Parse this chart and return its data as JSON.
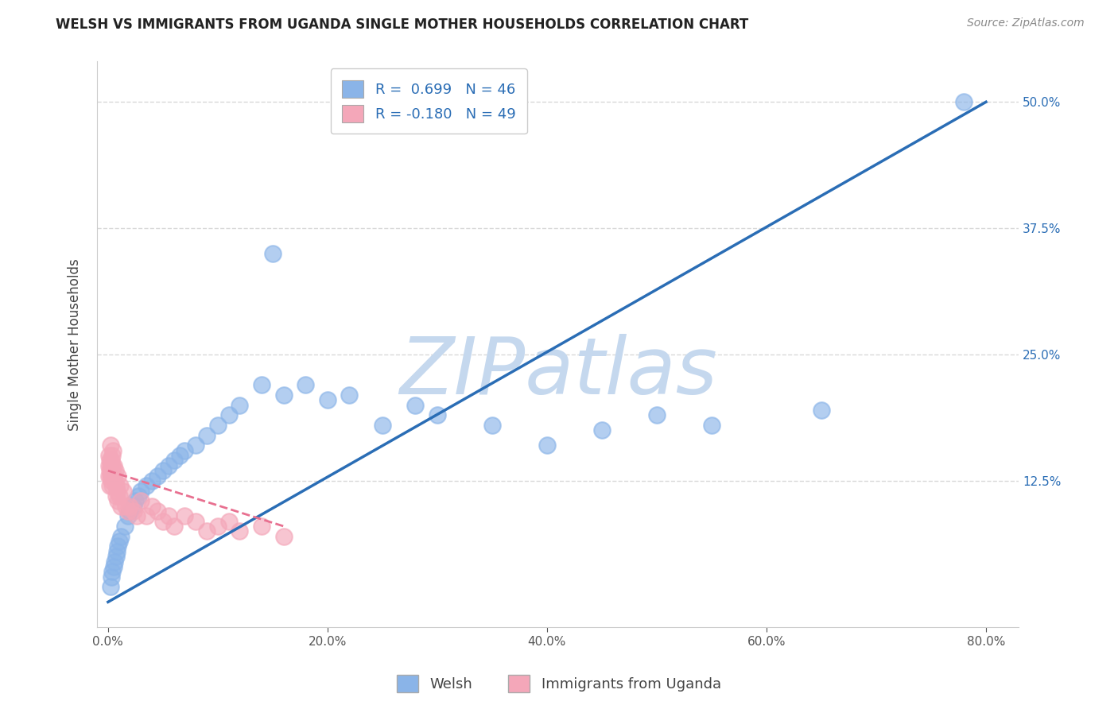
{
  "title": "WELSH VS IMMIGRANTS FROM UGANDA SINGLE MOTHER HOUSEHOLDS CORRELATION CHART",
  "source": "Source: ZipAtlas.com",
  "ylabel": "Single Mother Households",
  "x_tick_labels": [
    "0.0%",
    "20.0%",
    "40.0%",
    "60.0%",
    "80.0%"
  ],
  "x_tick_values": [
    0.0,
    20.0,
    40.0,
    60.0,
    80.0
  ],
  "y_tick_labels": [
    "12.5%",
    "25.0%",
    "37.5%",
    "50.0%"
  ],
  "y_tick_values": [
    12.5,
    25.0,
    37.5,
    50.0
  ],
  "xlim": [
    -1,
    83
  ],
  "ylim": [
    -2,
    54
  ],
  "legend_labels": [
    "Welsh",
    "Immigrants from Uganda"
  ],
  "legend_R": [
    0.699,
    -0.18
  ],
  "legend_N": [
    46,
    49
  ],
  "series_colors": [
    "#8ab4e8",
    "#f4a7b9"
  ],
  "trend_color_welsh": "#2a6db5",
  "trend_color_uganda": "#e87090",
  "watermark": "ZIPatlas",
  "watermark_color": "#c5d8ee",
  "background_color": "#ffffff",
  "grid_color": "#d8d8d8",
  "welsh_x": [
    0.2,
    0.3,
    0.4,
    0.5,
    0.6,
    0.7,
    0.8,
    0.9,
    1.0,
    1.2,
    1.5,
    1.8,
    2.0,
    2.3,
    2.5,
    2.8,
    3.0,
    3.5,
    4.0,
    4.5,
    5.0,
    5.5,
    6.0,
    6.5,
    7.0,
    8.0,
    9.0,
    10.0,
    11.0,
    12.0,
    14.0,
    15.0,
    16.0,
    18.0,
    20.0,
    22.0,
    25.0,
    28.0,
    30.0,
    35.0,
    40.0,
    45.0,
    50.0,
    55.0,
    65.0,
    78.0
  ],
  "welsh_y": [
    2.0,
    3.0,
    3.5,
    4.0,
    4.5,
    5.0,
    5.5,
    6.0,
    6.5,
    7.0,
    8.0,
    9.0,
    9.5,
    10.0,
    10.5,
    11.0,
    11.5,
    12.0,
    12.5,
    13.0,
    13.5,
    14.0,
    14.5,
    15.0,
    15.5,
    16.0,
    17.0,
    18.0,
    19.0,
    20.0,
    22.0,
    35.0,
    21.0,
    22.0,
    20.5,
    21.0,
    18.0,
    20.0,
    19.0,
    18.0,
    16.0,
    17.5,
    19.0,
    18.0,
    19.5,
    50.0
  ],
  "uganda_x": [
    0.05,
    0.08,
    0.1,
    0.12,
    0.15,
    0.18,
    0.2,
    0.22,
    0.25,
    0.28,
    0.3,
    0.33,
    0.35,
    0.38,
    0.4,
    0.45,
    0.5,
    0.55,
    0.6,
    0.65,
    0.7,
    0.75,
    0.8,
    0.85,
    0.9,
    1.0,
    1.1,
    1.2,
    1.4,
    1.6,
    1.8,
    2.0,
    2.3,
    2.6,
    3.0,
    3.5,
    4.0,
    4.5,
    5.0,
    5.5,
    6.0,
    7.0,
    8.0,
    9.0,
    10.0,
    11.0,
    12.0,
    14.0,
    16.0
  ],
  "uganda_y": [
    14.0,
    13.0,
    15.0,
    14.5,
    13.5,
    12.0,
    14.0,
    13.0,
    16.0,
    12.5,
    14.5,
    13.0,
    15.0,
    14.0,
    12.0,
    15.5,
    13.0,
    14.0,
    12.5,
    13.5,
    11.0,
    12.0,
    11.5,
    13.0,
    10.5,
    11.0,
    12.0,
    10.0,
    11.5,
    10.0,
    9.5,
    10.0,
    9.5,
    9.0,
    10.5,
    9.0,
    10.0,
    9.5,
    8.5,
    9.0,
    8.0,
    9.0,
    8.5,
    7.5,
    8.0,
    8.5,
    7.5,
    8.0,
    7.0
  ],
  "welsh_trend_x": [
    0.0,
    80.0
  ],
  "welsh_trend_y": [
    0.5,
    50.0
  ],
  "uganda_trend_x": [
    0.0,
    16.0
  ],
  "uganda_trend_y": [
    13.5,
    8.0
  ]
}
